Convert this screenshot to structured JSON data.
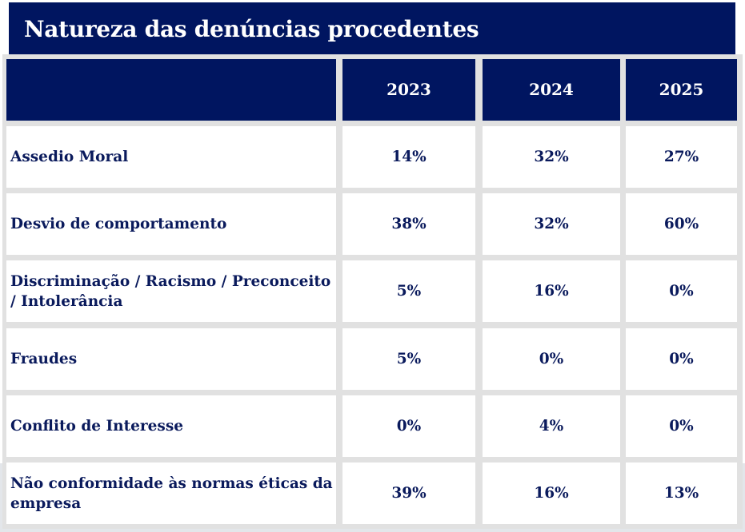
{
  "title": "Natureza das denúncias procedentes",
  "colors": {
    "header_bg": "#001560",
    "text": "#0a1a5c",
    "grid": "#e1e1e1"
  },
  "chart_data": {
    "type": "table",
    "title": "Natureza das denúncias procedentes",
    "columns": [
      "",
      "2023",
      "2024",
      "2025"
    ],
    "rows": [
      {
        "label": "Assedio Moral",
        "values": [
          "14%",
          "32%",
          "27%"
        ]
      },
      {
        "label": "Desvio de comportamento",
        "values": [
          "38%",
          "32%",
          "60%"
        ]
      },
      {
        "label": "Discriminação / Racismo / Preconceito / Intolerância",
        "values": [
          "5%",
          "16%",
          "0%"
        ]
      },
      {
        "label": "Fraudes",
        "values": [
          "5%",
          "0%",
          "0%"
        ]
      },
      {
        "label": "Conflito de Interesse",
        "values": [
          "0%",
          "4%",
          "0%"
        ]
      },
      {
        "label": "Não conformidade às normas éticas da empresa",
        "values": [
          "39%",
          "16%",
          "13%"
        ]
      }
    ]
  }
}
